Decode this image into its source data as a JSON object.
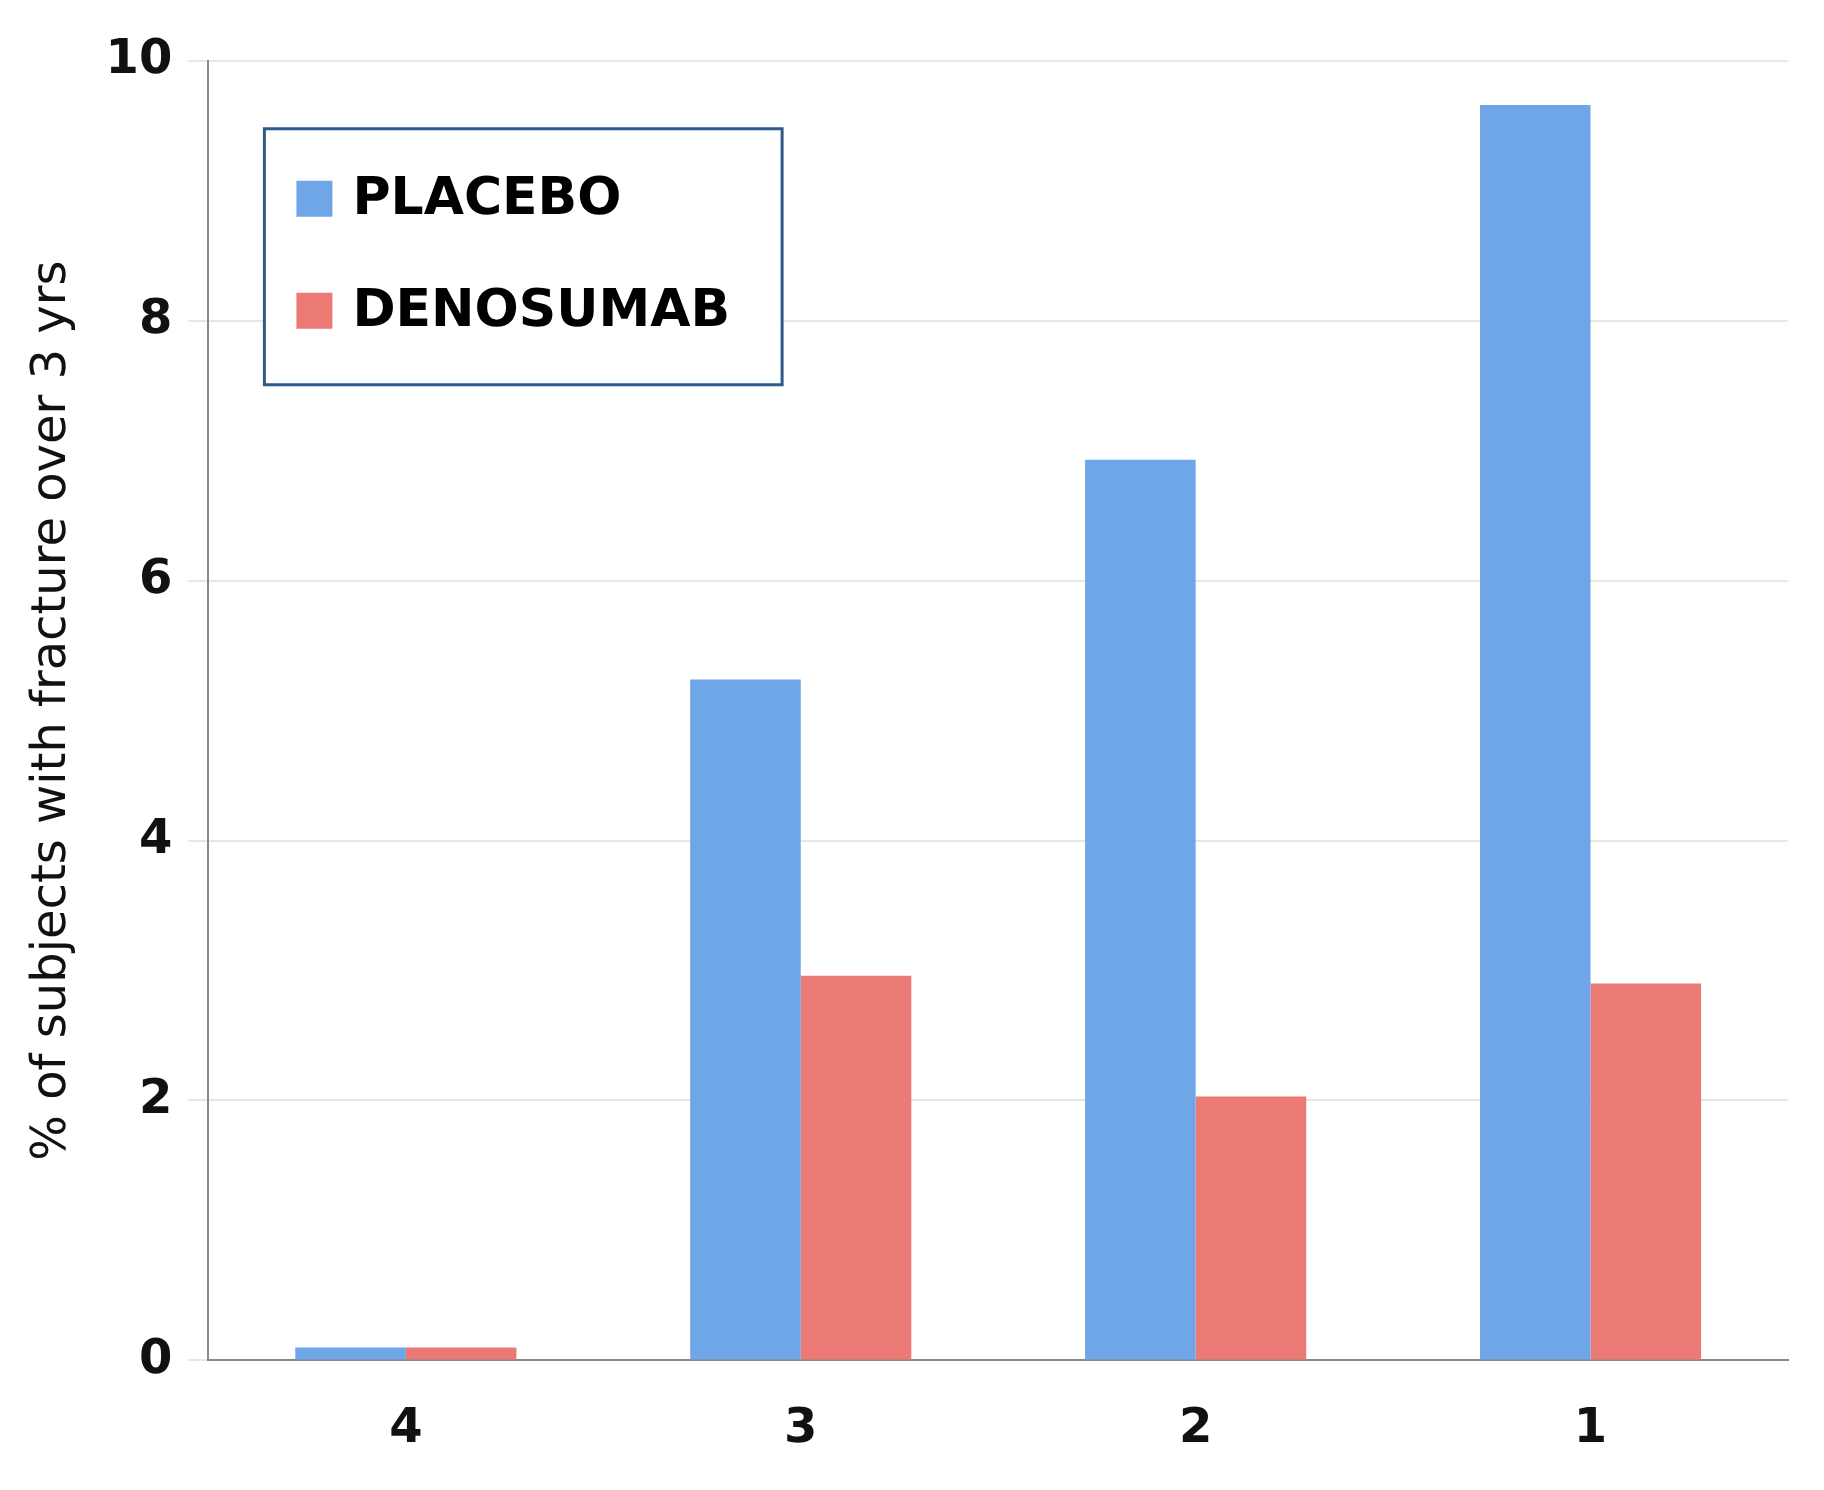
{
  "chart_data": {
    "type": "bar",
    "ylabel": "% of subjects with fracture over 3 yrs",
    "categories": [
      "4",
      "3",
      "2",
      "1"
    ],
    "series": [
      {
        "name": "PLACEBO",
        "color": "#6fa6e8",
        "values": [
          0.1,
          5.24,
          6.93,
          9.66
        ]
      },
      {
        "name": "DENOSUMAB",
        "color": "#ec7a74",
        "values": [
          0.1,
          2.96,
          2.03,
          2.9
        ]
      }
    ],
    "ylim": [
      0,
      10
    ],
    "yticks": [
      0,
      2,
      4,
      6,
      8,
      10
    ],
    "grid": "y",
    "legend": "top left"
  }
}
